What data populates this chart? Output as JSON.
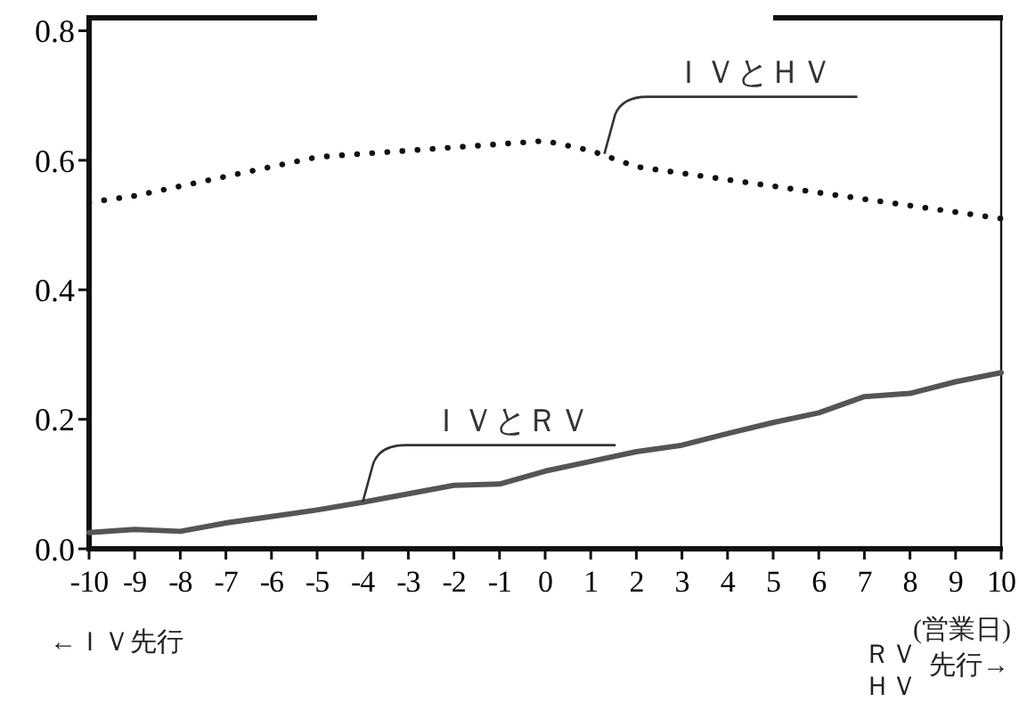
{
  "chart_data": {
    "type": "line",
    "xlabel": "(営業日)",
    "x": [
      -10,
      -9,
      -8,
      -7,
      -6,
      -5,
      -4,
      -3,
      -2,
      -1,
      0,
      1,
      2,
      3,
      4,
      5,
      6,
      7,
      8,
      9,
      10
    ],
    "series": [
      {
        "color": "#111111",
        "line_style": "dotted",
        "values": [
          0.535,
          0.545,
          0.56,
          0.575,
          0.59,
          0.605,
          0.61,
          0.615,
          0.62,
          0.625,
          0.63,
          0.615,
          0.59,
          0.58,
          0.57,
          0.56,
          0.55,
          0.54,
          0.53,
          0.52,
          0.51
        ]
      },
      {
        "color": "#555555",
        "line_style": "solid",
        "values": [
          0.025,
          0.03,
          0.027,
          0.04,
          0.05,
          0.06,
          0.072,
          0.085,
          0.098,
          0.1,
          0.12,
          0.135,
          0.15,
          0.16,
          0.178,
          0.195,
          0.21,
          0.235,
          0.24,
          0.258,
          0.272
        ]
      }
    ],
    "xlim": [
      -10,
      10
    ],
    "xticks": [
      -10,
      -9,
      -8,
      -7,
      -6,
      -5,
      -4,
      -3,
      -2,
      -1,
      0,
      1,
      2,
      3,
      4,
      5,
      6,
      7,
      8,
      9,
      10
    ],
    "ylim": [
      0,
      0.82
    ],
    "yticks": [
      {
        "value": 0,
        "label": "0.0"
      },
      {
        "value": 0.2,
        "label": "0.2"
      },
      {
        "value": 0.4,
        "label": "0.4"
      },
      {
        "value": 0.6,
        "label": "0.6"
      },
      {
        "value": 0.8,
        "label": "0.8"
      }
    ],
    "grid": false,
    "marker": "none",
    "annotations": [
      {
        "text": "ＩＶとＨＶ",
        "x": 1.3,
        "y": 0.61
      },
      {
        "text": "ＩＶとＲＶ",
        "x": -4,
        "y": 0.072
      },
      "←ＩＶ先行",
      "ＲＶ",
      "ＨＶ",
      "先行→"
    ]
  }
}
